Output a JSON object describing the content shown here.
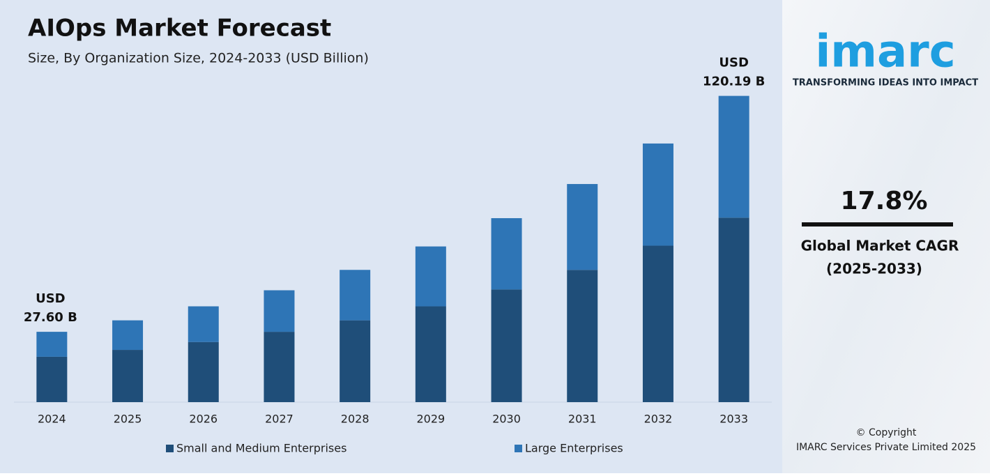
{
  "chart_data": {
    "type": "stacked_bar",
    "title": "AIOps Market Forecast",
    "subtitle": "Size, By Organization Size, 2024-2033 (USD Billion)",
    "categories": [
      "2024",
      "2025",
      "2026",
      "2027",
      "2028",
      "2029",
      "2030",
      "2031",
      "2032",
      "2033"
    ],
    "series": [
      {
        "name": "Small and Medium Enterprises",
        "color": "#1f4e79",
        "values": [
          17.8,
          20.5,
          23.6,
          27.6,
          32.1,
          37.6,
          44.2,
          51.9,
          61.4,
          72.4
        ]
      },
      {
        "name": "Large Enterprises",
        "color": "#2e75b6",
        "values": [
          9.8,
          11.6,
          14.0,
          16.3,
          19.8,
          23.5,
          28.0,
          33.7,
          40.1,
          47.79
        ]
      }
    ],
    "ylim": [
      0,
      125
    ],
    "annotations": [
      {
        "category": "2024",
        "lines": [
          "USD",
          "27.60 B"
        ]
      },
      {
        "category": "2033",
        "lines": [
          "USD",
          "120.19 B"
        ]
      }
    ]
  },
  "side_panel": {
    "logo": "imarc",
    "tagline": "TRANSFORMING IDEAS INTO IMPACT",
    "cagr": "17.8%",
    "cagr_label": [
      "Global Market CAGR",
      "(2025-2033)"
    ],
    "copyright": [
      "© Copyright",
      "IMARC Services Private Limited 2025"
    ]
  }
}
